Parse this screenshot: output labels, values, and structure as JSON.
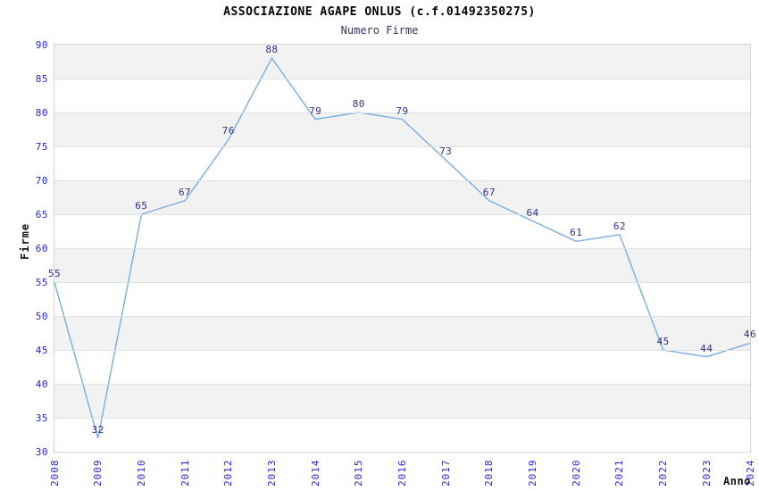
{
  "chart_data": {
    "type": "line",
    "title": "ASSOCIAZIONE AGAPE ONLUS (c.f.01492350275)",
    "subtitle": "Numero Firme",
    "xlabel": "Anno",
    "ylabel": "Firme",
    "categories": [
      "2008",
      "2009",
      "2010",
      "2011",
      "2012",
      "2013",
      "2014",
      "2015",
      "2016",
      "2017",
      "2018",
      "2019",
      "2020",
      "2021",
      "2022",
      "2023",
      "2024"
    ],
    "series": [
      {
        "name": "Numero Firme",
        "values": [
          55,
          32,
          65,
          67,
          76,
          88,
          79,
          80,
          79,
          73,
          67,
          64,
          61,
          62,
          45,
          44,
          46
        ]
      }
    ],
    "ylim": [
      30,
      90
    ],
    "ytick_step": 5,
    "legend_position": "none",
    "grid": "horizontal-bands",
    "markers": "none",
    "data_labels_shown": true,
    "colors": {
      "line": "#79ade0",
      "tick_labels": "#2525dd",
      "data_labels": "#30308a",
      "band_gray": "#f2f2f2",
      "band_white": "#ffffff",
      "plot_border": "#d4d4d4",
      "gridline": "#e2e2e2",
      "title": "#000000",
      "subtitle": "#333366",
      "axis_titles": "#111111"
    }
  }
}
